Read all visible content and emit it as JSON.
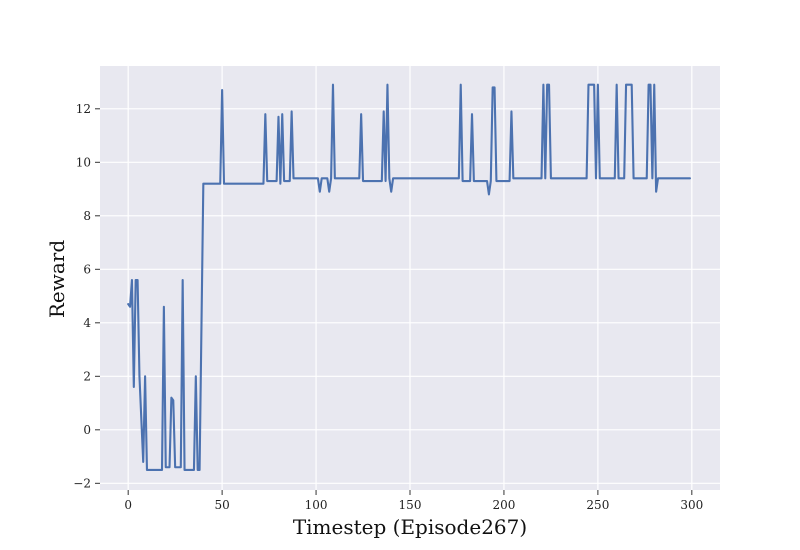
{
  "chart_data": {
    "type": "line",
    "title": "",
    "xlabel": "Timestep (Episode267)",
    "ylabel": "Reward",
    "xlim": [
      -15,
      315
    ],
    "ylim": [
      -2.25,
      13.6
    ],
    "xticks": [
      0,
      50,
      100,
      150,
      200,
      250,
      300
    ],
    "yticks": [
      -2,
      0,
      2,
      4,
      6,
      8,
      10,
      12
    ],
    "grid": true,
    "colors": {
      "background": "#e8e8f0",
      "grid": "#ffffff",
      "line": "#4c72b0"
    },
    "series": [
      {
        "name": "Reward",
        "points": [
          [
            0,
            4.7
          ],
          [
            1,
            4.6
          ],
          [
            2,
            5.6
          ],
          [
            3,
            1.6
          ],
          [
            4,
            5.6
          ],
          [
            5,
            5.6
          ],
          [
            6,
            2.0
          ],
          [
            8,
            -1.2
          ],
          [
            9,
            2.0
          ],
          [
            10,
            -1.5
          ],
          [
            18,
            -1.5
          ],
          [
            19,
            4.6
          ],
          [
            20,
            -1.4
          ],
          [
            22,
            -1.4
          ],
          [
            23,
            1.2
          ],
          [
            24,
            1.1
          ],
          [
            25,
            -1.4
          ],
          [
            28,
            -1.4
          ],
          [
            29,
            5.6
          ],
          [
            30,
            -1.5
          ],
          [
            35,
            -1.5
          ],
          [
            36,
            2.0
          ],
          [
            37,
            -1.5
          ],
          [
            38,
            -1.5
          ],
          [
            40,
            9.2
          ],
          [
            49,
            9.2
          ],
          [
            50,
            12.7
          ],
          [
            51,
            9.2
          ],
          [
            72,
            9.2
          ],
          [
            73,
            11.8
          ],
          [
            74,
            9.3
          ],
          [
            79,
            9.3
          ],
          [
            80,
            11.7
          ],
          [
            81,
            9.2
          ],
          [
            82,
            11.8
          ],
          [
            83,
            9.3
          ],
          [
            86,
            9.3
          ],
          [
            87,
            11.9
          ],
          [
            88,
            9.4
          ],
          [
            101,
            9.4
          ],
          [
            102,
            8.9
          ],
          [
            103,
            9.4
          ],
          [
            106,
            9.4
          ],
          [
            107,
            8.9
          ],
          [
            108,
            9.4
          ],
          [
            109,
            12.9
          ],
          [
            110,
            9.4
          ],
          [
            123,
            9.4
          ],
          [
            124,
            11.8
          ],
          [
            125,
            9.3
          ],
          [
            135,
            9.3
          ],
          [
            136,
            11.9
          ],
          [
            137,
            9.3
          ],
          [
            138,
            12.9
          ],
          [
            139,
            9.4
          ],
          [
            140,
            8.9
          ],
          [
            141,
            9.4
          ],
          [
            176,
            9.4
          ],
          [
            177,
            12.9
          ],
          [
            178,
            9.3
          ],
          [
            182,
            9.3
          ],
          [
            183,
            11.8
          ],
          [
            184,
            9.3
          ],
          [
            191,
            9.3
          ],
          [
            192,
            8.8
          ],
          [
            193,
            9.3
          ],
          [
            194,
            12.8
          ],
          [
            195,
            12.8
          ],
          [
            196,
            9.3
          ],
          [
            203,
            9.3
          ],
          [
            204,
            11.9
          ],
          [
            205,
            9.4
          ],
          [
            220,
            9.4
          ],
          [
            221,
            12.9
          ],
          [
            222,
            9.4
          ],
          [
            223,
            12.9
          ],
          [
            224,
            12.9
          ],
          [
            225,
            9.4
          ],
          [
            244,
            9.4
          ],
          [
            245,
            12.9
          ],
          [
            248,
            12.9
          ],
          [
            249,
            9.4
          ],
          [
            250,
            12.9
          ],
          [
            251,
            9.4
          ],
          [
            259,
            9.4
          ],
          [
            260,
            12.9
          ],
          [
            261,
            9.4
          ],
          [
            264,
            9.4
          ],
          [
            265,
            12.9
          ],
          [
            268,
            12.9
          ],
          [
            269,
            9.4
          ],
          [
            276,
            9.4
          ],
          [
            277,
            12.9
          ],
          [
            278,
            12.9
          ],
          [
            279,
            9.4
          ],
          [
            280,
            12.9
          ],
          [
            281,
            8.9
          ],
          [
            282,
            9.4
          ],
          [
            299,
            9.4
          ]
        ]
      }
    ]
  }
}
